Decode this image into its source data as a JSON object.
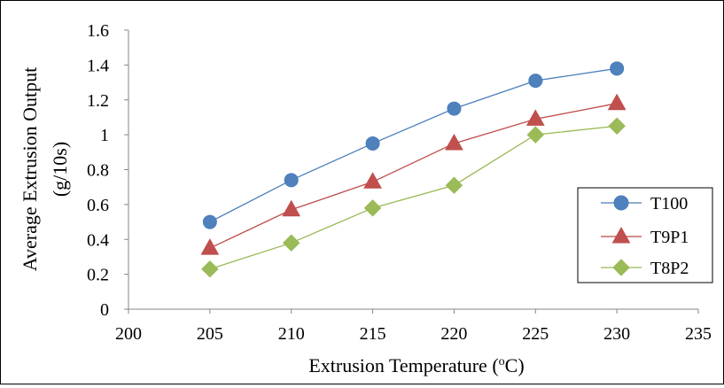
{
  "chart_data": {
    "type": "line",
    "xlabel": "Extrusion Temperature (",
    "xlabel_sup": "o",
    "xlabel_end": "C)",
    "ylabel_line1": "Average Extrusion Output",
    "ylabel_line2": "(g/10s)",
    "xlim": [
      200,
      235
    ],
    "ylim": [
      0,
      1.6
    ],
    "x_ticks": [
      200,
      205,
      210,
      215,
      220,
      225,
      230,
      235
    ],
    "y_ticks": [
      0,
      0.2,
      0.4,
      0.6,
      0.8,
      1,
      1.2,
      1.4,
      1.6
    ],
    "x_tick_labels": [
      "200",
      "205",
      "210",
      "215",
      "220",
      "225",
      "230",
      "235"
    ],
    "y_tick_labels": [
      "0",
      "0.2",
      "0.4",
      "0.6",
      "0.8",
      "1",
      "1.2",
      "1.4",
      "1.6"
    ],
    "grid": false,
    "legend_position": "right",
    "x": [
      205,
      210,
      215,
      220,
      225,
      230
    ],
    "series": [
      {
        "name": "T100",
        "marker": "circle",
        "line_color": "#4a7ebb",
        "marker_color": "#4f81bd",
        "values": [
          0.5,
          0.74,
          0.95,
          1.15,
          1.31,
          1.38
        ]
      },
      {
        "name": "T9P1",
        "marker": "triangle",
        "line_color": "#be4b48",
        "marker_color": "#c0504d",
        "values": [
          0.35,
          0.57,
          0.73,
          0.95,
          1.09,
          1.18
        ]
      },
      {
        "name": "T8P2",
        "marker": "diamond",
        "line_color": "#98b954",
        "marker_color": "#9bbb59",
        "values": [
          0.23,
          0.38,
          0.58,
          0.71,
          1.0,
          1.05
        ]
      }
    ]
  }
}
